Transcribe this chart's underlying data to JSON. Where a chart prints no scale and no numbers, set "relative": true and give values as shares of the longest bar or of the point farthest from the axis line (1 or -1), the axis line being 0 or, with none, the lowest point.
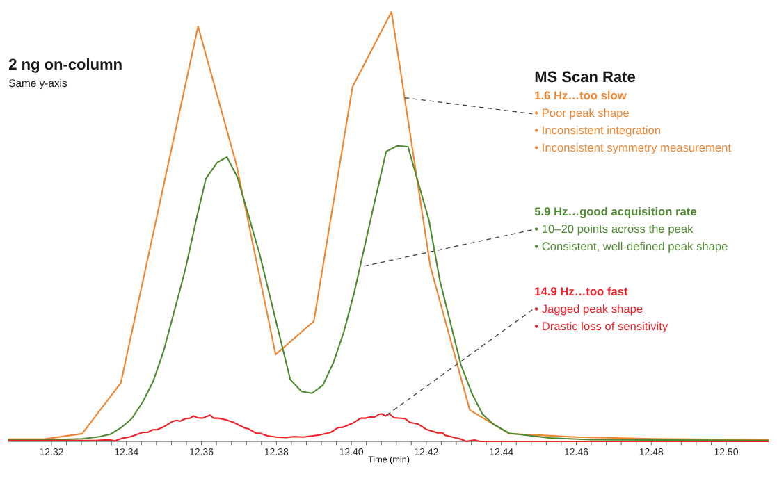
{
  "chart_data": {
    "type": "line",
    "title": "2 ng on-column",
    "subtitle": "Same y-axis",
    "xlabel": "Time (min)",
    "legend_title": "MS Scan Rate",
    "legend": "right",
    "relative": true,
    "xlim": [
      12.3085,
      12.5115
    ],
    "xticks": [
      12.32,
      12.34,
      12.36,
      12.38,
      {
        "value": 12.4,
        "label": "12.40"
      },
      12.42,
      12.44,
      12.46,
      12.48,
      {
        "value": 12.5,
        "label": "12.50"
      }
    ],
    "series": [
      {
        "name": "1.6 Hz…too slow",
        "color": "#ef8530",
        "x": [
          12.3085,
          12.3179,
          12.3282,
          12.3385,
          12.3591,
          12.3694,
          12.3798,
          12.39,
          12.4003,
          12.4107,
          12.4211,
          12.4316,
          12.4421,
          12.46,
          12.48,
          12.5115
        ],
        "values": [
          0.005,
          0.005,
          0.018,
          0.136,
          0.966,
          0.642,
          0.202,
          0.28,
          0.825,
          1.0,
          0.406,
          0.073,
          0.018,
          0.01,
          0.006,
          0.003
        ]
      },
      {
        "name": "5.9 Hz…good acquisition rate",
        "color": "#4e8a30",
        "x": [
          12.3085,
          12.3179,
          12.3282,
          12.3328,
          12.3358,
          12.3386,
          12.3414,
          12.3443,
          12.3471,
          12.3499,
          12.3527,
          12.3557,
          12.3587,
          12.3612,
          12.3642,
          12.3668,
          12.3696,
          12.3755,
          12.3837,
          12.3867,
          12.3895,
          12.3924,
          12.3952,
          12.398,
          12.4008,
          12.4064,
          12.4093,
          12.4123,
          12.4151,
          12.4207,
          12.4236,
          12.4292,
          12.4321,
          12.435,
          12.4379,
          12.4421,
          12.4528,
          12.4636,
          12.5115
        ],
        "values": [
          0.003,
          0.003,
          0.006,
          0.011,
          0.017,
          0.032,
          0.053,
          0.091,
          0.139,
          0.21,
          0.301,
          0.4,
          0.519,
          0.612,
          0.649,
          0.662,
          0.615,
          0.437,
          0.144,
          0.116,
          0.112,
          0.131,
          0.183,
          0.255,
          0.348,
          0.565,
          0.675,
          0.688,
          0.686,
          0.515,
          0.375,
          0.179,
          0.113,
          0.063,
          0.04,
          0.019,
          0.008,
          0.004,
          0.002
        ]
      },
      {
        "name": "14.9 Hz…too fast",
        "color": "#ee2128",
        "x": [
          12.3085,
          12.3315,
          12.3341,
          12.3358,
          12.3369,
          12.3388,
          12.3411,
          12.3424,
          12.3444,
          12.3457,
          12.347,
          12.3481,
          12.35,
          12.3524,
          12.3535,
          12.3543,
          12.3557,
          12.357,
          12.3579,
          12.359,
          12.3603,
          12.3623,
          12.3633,
          12.3646,
          12.3666,
          12.3686,
          12.3716,
          12.3726,
          12.3746,
          12.3756,
          12.3776,
          12.3799,
          12.3825,
          12.3845,
          12.3872,
          12.3898,
          12.3915,
          12.3925,
          12.3945,
          12.3965,
          12.3978,
          12.4005,
          12.4025,
          12.4038,
          12.4051,
          12.4061,
          12.4074,
          12.4081,
          12.4091,
          12.4101,
          12.4114,
          12.4143,
          12.4157,
          12.4179,
          12.42,
          12.4229,
          12.4243,
          12.425,
          12.4279,
          12.4293,
          12.4307,
          12.4329,
          12.4343,
          12.4386,
          12.5115
        ],
        "values": [
          0.002,
          0.002,
          0.003,
          0.003,
          0.001,
          0.007,
          0.011,
          0.015,
          0.021,
          0.021,
          0.027,
          0.027,
          0.034,
          0.047,
          0.049,
          0.047,
          0.053,
          0.054,
          0.059,
          0.055,
          0.054,
          0.061,
          0.054,
          0.054,
          0.05,
          0.044,
          0.031,
          0.029,
          0.019,
          0.019,
          0.013,
          0.01,
          0.009,
          0.011,
          0.01,
          0.013,
          0.015,
          0.017,
          0.021,
          0.032,
          0.033,
          0.043,
          0.054,
          0.054,
          0.057,
          0.056,
          0.063,
          0.064,
          0.059,
          0.064,
          0.055,
          0.053,
          0.044,
          0.04,
          0.028,
          0.02,
          0.02,
          0.014,
          0.008,
          0.005,
          0.0,
          0.003,
          0.0,
          0.0,
          0.0
        ]
      }
    ],
    "annotations": [
      {
        "text": "•  Poor peak shape",
        "x": 12.4142,
        "y": 0.8
      },
      "•  Inconsistent integration",
      "•  Inconsistent symmetry measurement",
      {
        "text": "•  10–20 points across the peak",
        "x": 12.4034,
        "y": 0.408
      },
      "•  Consistent, well-defined peak shape",
      {
        "text": "•  Jagged peak shape",
        "x": 12.4094,
        "y": 0.061
      },
      "•  Drastic loss of sensitivity"
    ]
  }
}
